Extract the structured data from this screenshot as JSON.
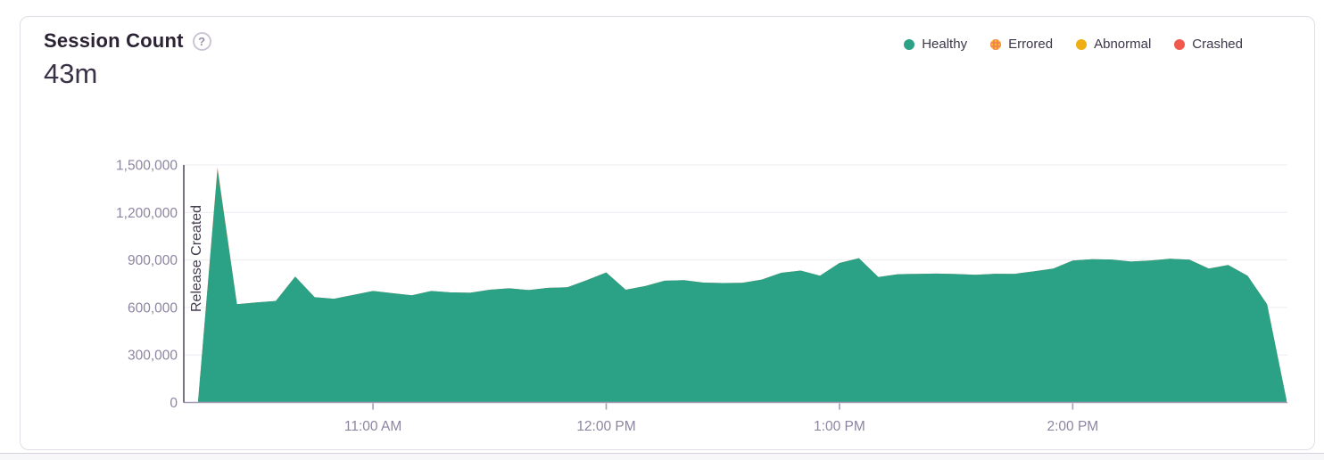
{
  "card": {
    "title": "Session Count",
    "help_icon_glyph": "?",
    "big_value": "43m",
    "legend": [
      {
        "id": "healthy",
        "label": "Healthy",
        "color": "#2ba185",
        "pattern": "solid"
      },
      {
        "id": "errored",
        "label": "Errored",
        "color": "#f4834f",
        "pattern": "dotted",
        "dot_color": "#ffc227"
      },
      {
        "id": "abnormal",
        "label": "Abnormal",
        "color": "#efaf13",
        "pattern": "solid"
      },
      {
        "id": "crashed",
        "label": "Crashed",
        "color": "#f2594d",
        "pattern": "solid"
      }
    ]
  },
  "chart_data": {
    "type": "area",
    "stacked": true,
    "title": "Session Count",
    "xlabel": "",
    "ylabel": "",
    "ylim": [
      0,
      1500000
    ],
    "grid": "horizontal",
    "legend_position": "top-right",
    "categories": [
      "10:15 AM",
      "10:20 AM",
      "10:25 AM",
      "10:30 AM",
      "10:35 AM",
      "10:40 AM",
      "10:45 AM",
      "10:50 AM",
      "10:55 AM",
      "11:00 AM",
      "11:05 AM",
      "11:10 AM",
      "11:15 AM",
      "11:20 AM",
      "11:25 AM",
      "11:30 AM",
      "11:35 AM",
      "11:40 AM",
      "11:45 AM",
      "11:50 AM",
      "11:55 AM",
      "12:00 PM",
      "12:05 PM",
      "12:10 PM",
      "12:15 PM",
      "12:20 PM",
      "12:25 PM",
      "12:30 PM",
      "12:35 PM",
      "12:40 PM",
      "12:45 PM",
      "12:50 PM",
      "12:55 PM",
      "1:00 PM",
      "1:05 PM",
      "1:10 PM",
      "1:15 PM",
      "1:20 PM",
      "1:25 PM",
      "1:30 PM",
      "1:35 PM",
      "1:40 PM",
      "1:45 PM",
      "1:50 PM",
      "1:55 PM",
      "2:00 PM",
      "2:05 PM",
      "2:10 PM",
      "2:15 PM",
      "2:20 PM",
      "2:25 PM",
      "2:30 PM",
      "2:35 PM",
      "2:40 PM",
      "2:45 PM",
      "2:50 PM",
      "2:55 PM"
    ],
    "series": [
      {
        "name": "Healthy",
        "color": "#2ba185",
        "values": [
          8000,
          1470000,
          620000,
          632000,
          641000,
          795000,
          665000,
          655000,
          680000,
          704000,
          690000,
          677000,
          704000,
          695000,
          693000,
          712000,
          721000,
          710000,
          724000,
          727000,
          772000,
          821000,
          712000,
          735000,
          769000,
          772000,
          757000,
          754000,
          756000,
          776000,
          819000,
          833000,
          801000,
          881000,
          911000,
          792000,
          810000,
          812000,
          814000,
          811000,
          806000,
          813000,
          812000,
          828000,
          846000,
          896000,
          905000,
          903000,
          890000,
          896000,
          908000,
          902000,
          846000,
          868000,
          800000,
          620000,
          15000
        ]
      },
      {
        "name": "Errored",
        "color": "#f4834f",
        "values": [
          0,
          15000,
          0,
          0,
          0,
          0,
          0,
          0,
          0,
          0,
          0,
          0,
          0,
          0,
          0,
          0,
          0,
          0,
          0,
          0,
          0,
          0,
          0,
          0,
          0,
          0,
          0,
          0,
          0,
          0,
          0,
          0,
          0,
          0,
          0,
          0,
          0,
          0,
          0,
          0,
          0,
          0,
          0,
          0,
          0,
          0,
          0,
          0,
          0,
          0,
          0,
          0,
          0,
          0,
          0,
          0,
          0
        ]
      }
    ],
    "yticks": [
      {
        "value": 0,
        "label": "0"
      },
      {
        "value": 300000,
        "label": "300,000"
      },
      {
        "value": 600000,
        "label": "600,000"
      },
      {
        "value": 900000,
        "label": "900,000"
      },
      {
        "value": 1200000,
        "label": "1,200,000"
      },
      {
        "value": 1500000,
        "label": "1,500,000"
      }
    ],
    "xticks": [
      "11:00 AM",
      "12:00 PM",
      "1:00 PM",
      "2:00 PM"
    ],
    "annotations": [
      {
        "type": "vertical-line",
        "label": "Release Created",
        "at": "10:15 AM"
      }
    ],
    "colors": {
      "axis_line": "#a79cb5",
      "grid_line": "#f1eff4",
      "axis_text": "#8d85a0",
      "release_line": "#57515e",
      "release_text": "#433d4d"
    }
  }
}
